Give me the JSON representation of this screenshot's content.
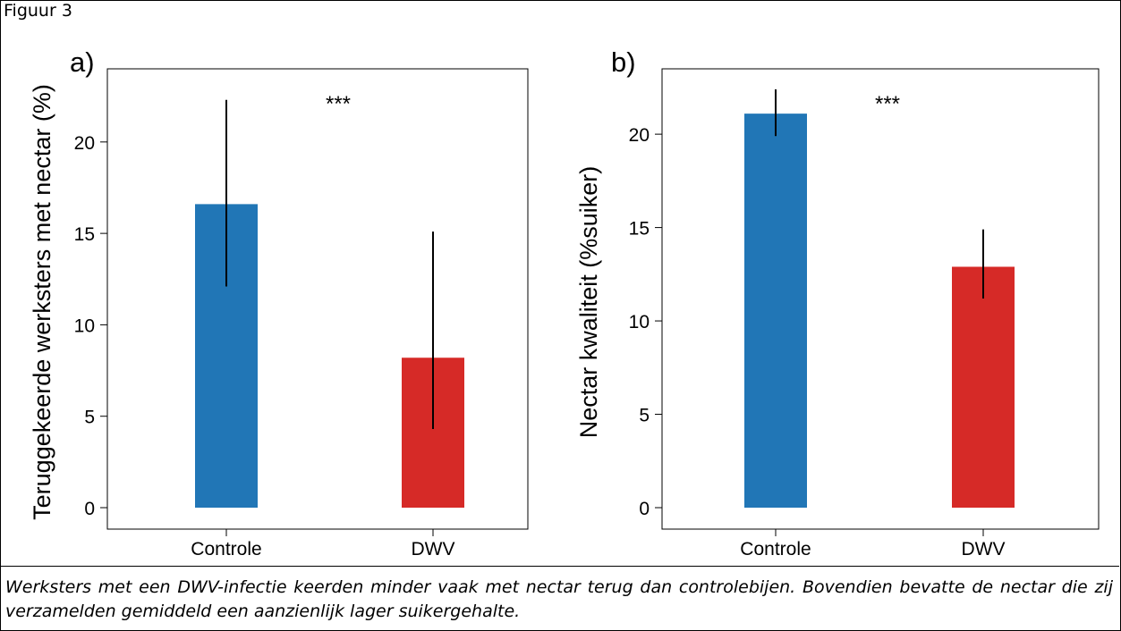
{
  "figure_label": "Figuur 3",
  "caption": "Werksters met een DWV-infectie keerden minder vaak met nectar terug dan controlebijen. Bovendien bevatte de nectar die zij verzamelden gemiddeld een aanzienlijk lager suikergehalte.",
  "colors": {
    "controle": "#2176b6",
    "dwv": "#d62a27",
    "axis": "#000000"
  },
  "chart_data": [
    {
      "type": "bar",
      "panel_label": "a)",
      "ylabel": "Teruggekeerde werksters met nectar (%)",
      "categories": [
        "Controle",
        "DWV"
      ],
      "values": [
        16.6,
        8.2
      ],
      "error_low": [
        12.1,
        4.3
      ],
      "error_high": [
        22.3,
        15.1
      ],
      "ylim": [
        0,
        24
      ],
      "yticks": [
        0,
        5,
        10,
        15,
        20
      ],
      "significance": "***",
      "grid": false,
      "bar_colors": [
        "#2176b6",
        "#d62a27"
      ]
    },
    {
      "type": "bar",
      "panel_label": "b)",
      "ylabel": "Nectar kwaliteit (%suiker)",
      "categories": [
        "Controle",
        "DWV"
      ],
      "values": [
        21.1,
        12.9
      ],
      "error_low": [
        19.9,
        11.2
      ],
      "error_high": [
        22.4,
        14.9
      ],
      "ylim": [
        0,
        23.5
      ],
      "yticks": [
        0,
        5,
        10,
        15,
        20
      ],
      "significance": "***",
      "grid": false,
      "bar_colors": [
        "#2176b6",
        "#d62a27"
      ]
    }
  ]
}
